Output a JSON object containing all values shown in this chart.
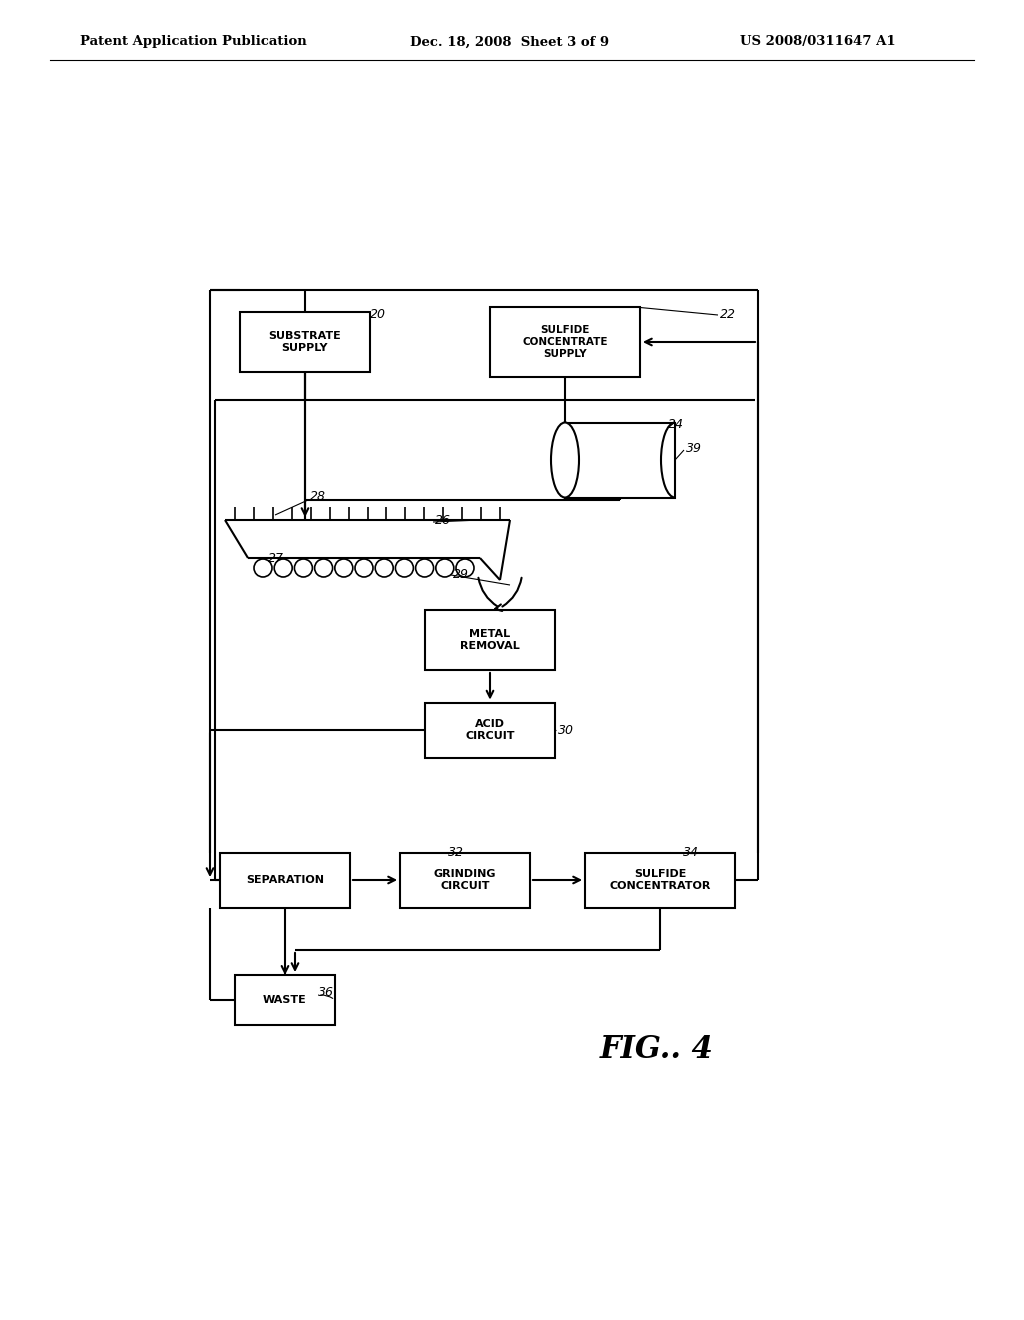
{
  "background_color": "#ffffff",
  "header_left": "Patent Application Publication",
  "header_mid": "Dec. 18, 2008  Sheet 3 of 9",
  "header_right": "US 2008/0311647 A1",
  "figure_label": "FIG.. 4",
  "line_color": "#000000",
  "text_color": "#000000"
}
